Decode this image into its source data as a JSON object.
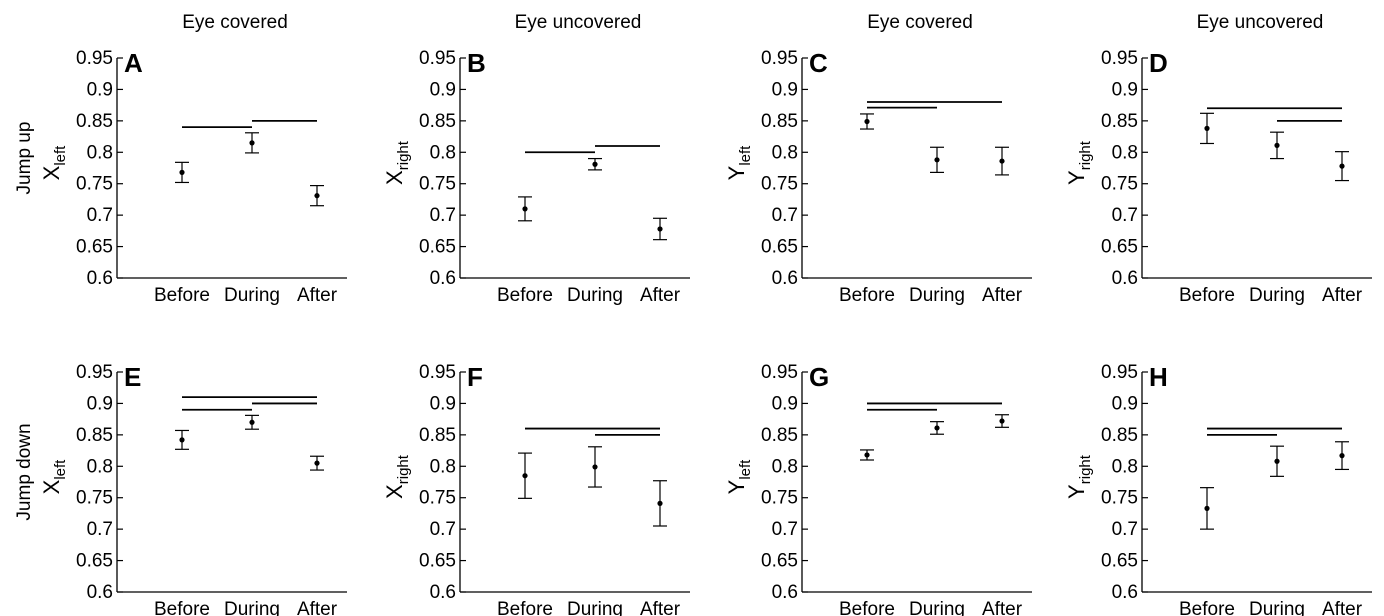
{
  "column_titles": [
    "Eye covered",
    "Eye uncovered",
    "Eye covered",
    "Eye uncovered"
  ],
  "row_labels": [
    "Jump up",
    "Jump down"
  ],
  "chart_data": [
    {
      "panel": "A",
      "type": "scatter",
      "ylabel_main": "X",
      "ylabel_sub": "left",
      "categories": [
        "Before",
        "During",
        "After"
      ],
      "values": [
        0.768,
        0.815,
        0.731
      ],
      "errors": [
        0.016,
        0.016,
        0.016
      ],
      "ylim": [
        0.6,
        0.95
      ],
      "yticks": [
        "0.6",
        "0.65",
        "0.7",
        "0.75",
        "0.8",
        "0.85",
        "0.9",
        "0.95"
      ],
      "significance_lines": [
        {
          "from": 0,
          "to": 1,
          "y": 0.84
        },
        {
          "from": 1,
          "to": 2,
          "y": 0.85
        }
      ]
    },
    {
      "panel": "B",
      "type": "scatter",
      "ylabel_main": "X",
      "ylabel_sub": "right",
      "categories": [
        "Before",
        "During",
        "After"
      ],
      "values": [
        0.71,
        0.781,
        0.678
      ],
      "errors": [
        0.019,
        0.009,
        0.017
      ],
      "ylim": [
        0.6,
        0.95
      ],
      "yticks": [
        "0.6",
        "0.65",
        "0.7",
        "0.75",
        "0.8",
        "0.85",
        "0.9",
        "0.95"
      ],
      "significance_lines": [
        {
          "from": 0,
          "to": 1,
          "y": 0.8
        },
        {
          "from": 1,
          "to": 2,
          "y": 0.81
        }
      ]
    },
    {
      "panel": "C",
      "type": "scatter",
      "ylabel_main": "Y",
      "ylabel_sub": "left",
      "categories": [
        "Before",
        "During",
        "After"
      ],
      "values": [
        0.849,
        0.788,
        0.786
      ],
      "errors": [
        0.012,
        0.02,
        0.022
      ],
      "ylim": [
        0.6,
        0.95
      ],
      "yticks": [
        "0.6",
        "0.65",
        "0.7",
        "0.75",
        "0.8",
        "0.85",
        "0.9",
        "0.95"
      ],
      "significance_lines": [
        {
          "from": 0,
          "to": 1,
          "y": 0.871
        },
        {
          "from": 0,
          "to": 2,
          "y": 0.88
        }
      ]
    },
    {
      "panel": "D",
      "type": "scatter",
      "ylabel_main": "Y",
      "ylabel_sub": "right",
      "categories": [
        "Before",
        "During",
        "After"
      ],
      "values": [
        0.838,
        0.811,
        0.778
      ],
      "errors": [
        0.024,
        0.021,
        0.023
      ],
      "ylim": [
        0.6,
        0.95
      ],
      "yticks": [
        "0.6",
        "0.65",
        "0.7",
        "0.75",
        "0.8",
        "0.85",
        "0.9",
        "0.95"
      ],
      "significance_lines": [
        {
          "from": 0,
          "to": 2,
          "y": 0.87
        },
        {
          "from": 1,
          "to": 2,
          "y": 0.85
        }
      ]
    },
    {
      "panel": "E",
      "type": "scatter",
      "ylabel_main": "X",
      "ylabel_sub": "left",
      "categories": [
        "Before",
        "During",
        "After"
      ],
      "values": [
        0.842,
        0.87,
        0.805
      ],
      "errors": [
        0.015,
        0.011,
        0.011
      ],
      "ylim": [
        0.6,
        0.95
      ],
      "yticks": [
        "0.6",
        "0.65",
        "0.7",
        "0.75",
        "0.8",
        "0.85",
        "0.9",
        "0.95"
      ],
      "significance_lines": [
        {
          "from": 0,
          "to": 1,
          "y": 0.89
        },
        {
          "from": 1,
          "to": 2,
          "y": 0.9
        },
        {
          "from": 0,
          "to": 2,
          "y": 0.91
        }
      ]
    },
    {
      "panel": "F",
      "type": "scatter",
      "ylabel_main": "X",
      "ylabel_sub": "right",
      "categories": [
        "Before",
        "During",
        "After"
      ],
      "values": [
        0.785,
        0.799,
        0.741
      ],
      "errors": [
        0.036,
        0.032,
        0.036
      ],
      "ylim": [
        0.6,
        0.95
      ],
      "yticks": [
        "0.6",
        "0.65",
        "0.7",
        "0.75",
        "0.8",
        "0.85",
        "0.9",
        "0.95"
      ],
      "significance_lines": [
        {
          "from": 0,
          "to": 2,
          "y": 0.86
        },
        {
          "from": 1,
          "to": 2,
          "y": 0.85
        }
      ]
    },
    {
      "panel": "G",
      "type": "scatter",
      "ylabel_main": "Y",
      "ylabel_sub": "left",
      "categories": [
        "Before",
        "During",
        "After"
      ],
      "values": [
        0.818,
        0.861,
        0.872
      ],
      "errors": [
        0.008,
        0.01,
        0.01
      ],
      "ylim": [
        0.6,
        0.95
      ],
      "yticks": [
        "0.6",
        "0.65",
        "0.7",
        "0.75",
        "0.8",
        "0.85",
        "0.9",
        "0.95"
      ],
      "significance_lines": [
        {
          "from": 0,
          "to": 1,
          "y": 0.89
        },
        {
          "from": 0,
          "to": 2,
          "y": 0.9
        }
      ]
    },
    {
      "panel": "H",
      "type": "scatter",
      "ylabel_main": "Y",
      "ylabel_sub": "right",
      "categories": [
        "Before",
        "During",
        "After"
      ],
      "values": [
        0.733,
        0.808,
        0.817
      ],
      "errors": [
        0.033,
        0.024,
        0.022
      ],
      "ylim": [
        0.6,
        0.95
      ],
      "yticks": [
        "0.6",
        "0.65",
        "0.7",
        "0.75",
        "0.8",
        "0.85",
        "0.9",
        "0.95"
      ],
      "significance_lines": [
        {
          "from": 0,
          "to": 1,
          "y": 0.85
        },
        {
          "from": 0,
          "to": 2,
          "y": 0.86
        }
      ]
    }
  ]
}
